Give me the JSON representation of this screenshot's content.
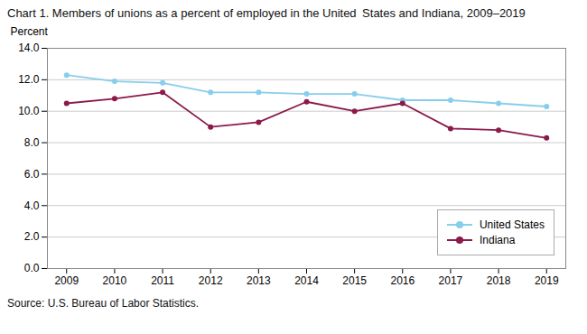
{
  "chart_data": {
    "type": "line",
    "title": "Chart 1. Members of unions as a percent of employed in the United States and Indiana, 2009–2019",
    "ylabel": "Percent",
    "caption": "Source: U.S. Bureau of Labor Statistics.",
    "x": [
      2009,
      2010,
      2011,
      2012,
      2013,
      2014,
      2015,
      2016,
      2017,
      2018,
      2019
    ],
    "series": [
      {
        "name": "United States",
        "color": "#87CEEB",
        "values": [
          12.3,
          11.9,
          11.8,
          11.2,
          11.2,
          11.1,
          11.1,
          10.7,
          10.7,
          10.5,
          10.3
        ]
      },
      {
        "name": "Indiana",
        "color": "#8B1A4A",
        "values": [
          10.5,
          10.8,
          11.2,
          9.0,
          9.3,
          10.6,
          10.0,
          10.5,
          8.9,
          8.8,
          8.3
        ]
      }
    ],
    "xlim": [
      2008.6,
      2019.4
    ],
    "xticks": [
      2009,
      2010,
      2011,
      2012,
      2013,
      2014,
      2015,
      2016,
      2017,
      2018,
      2019
    ],
    "ylim": [
      0,
      14
    ],
    "yticks": [
      {
        "value": 0,
        "label": "0.0"
      },
      {
        "value": 2,
        "label": "2.0"
      },
      {
        "value": 4,
        "label": "4.0"
      },
      {
        "value": 6,
        "label": "6.0"
      },
      {
        "value": 8,
        "label": "8.0"
      },
      {
        "value": 10,
        "label": "10.0"
      },
      {
        "value": 12,
        "label": "12.0"
      },
      {
        "value": 14,
        "label": "14.0"
      }
    ],
    "grid": true,
    "legend": "lower right",
    "marker": "circle",
    "line_style": "solid"
  }
}
